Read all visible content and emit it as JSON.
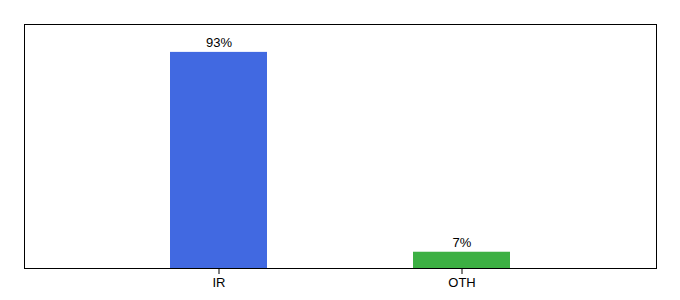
{
  "chart_data": {
    "type": "bar",
    "categories": [
      "IR",
      "OTH"
    ],
    "values": [
      93,
      7
    ],
    "colors": [
      "#4169e1",
      "#3cb043"
    ],
    "value_labels": [
      "93%",
      "7%"
    ],
    "data_labels": true,
    "ylim": [
      0,
      105
    ],
    "yticks": [],
    "tick_labels": "x"
  }
}
